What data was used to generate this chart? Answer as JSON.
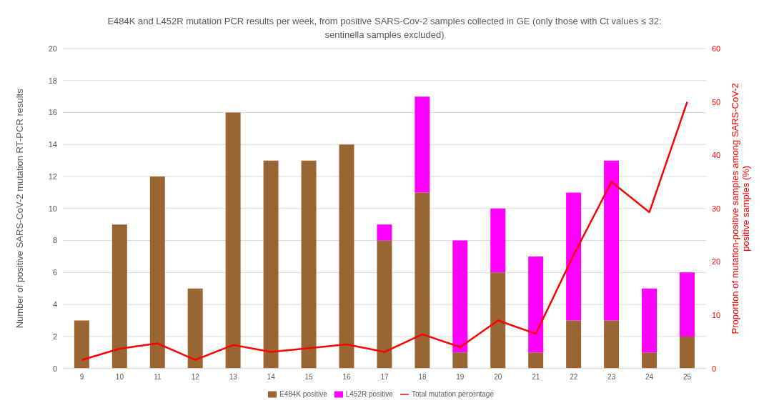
{
  "chart_data": {
    "type": "bar",
    "title": "E484K and L452R mutation PCR results per week, from positive SARS-Cov-2 samples collected in GE  (only those with Ct values ≤ 32: sentinella samples excluded)",
    "categories": [
      "9",
      "10",
      "11",
      "12",
      "13",
      "14",
      "15",
      "16",
      "17",
      "18",
      "19",
      "20",
      "21",
      "22",
      "23",
      "24",
      "25"
    ],
    "series": [
      {
        "name": "E484K positive",
        "color": "#996633",
        "values": [
          3,
          9,
          12,
          5,
          16,
          13,
          13,
          14,
          8,
          11,
          1,
          6,
          1,
          3,
          3,
          1,
          2
        ]
      },
      {
        "name": "L452R positive",
        "color": "#ff00ff",
        "values": [
          0,
          0,
          0,
          0,
          0,
          0,
          0,
          0,
          1,
          6,
          7,
          4,
          6,
          8,
          10,
          4,
          4
        ]
      },
      {
        "name": "Total mutation percentage",
        "type": "line",
        "axis": "y2",
        "color": "#ff0000",
        "values": [
          1.6,
          3.7,
          4.7,
          1.6,
          4.4,
          3.1,
          3.8,
          4.5,
          3.1,
          6.4,
          4.0,
          9.0,
          6.5,
          21.3,
          35,
          29.3,
          50
        ]
      }
    ],
    "stacked": true,
    "ylabel": "Number of positive SARS-CoV-2 mutation RT-PCR results",
    "y2label": "Proportion of  mutation-positive samples among SARS-CoV-2 positive samples (%)",
    "ylim": [
      0,
      20
    ],
    "yticks": [
      0,
      2,
      4,
      6,
      8,
      10,
      12,
      14,
      16,
      18,
      20
    ],
    "y2lim": [
      0,
      60
    ],
    "y2ticks": [
      0,
      10,
      20,
      30,
      40,
      50,
      60
    ],
    "grid": "y",
    "legend": "bottom",
    "marker": "none",
    "line_style": "solid"
  }
}
